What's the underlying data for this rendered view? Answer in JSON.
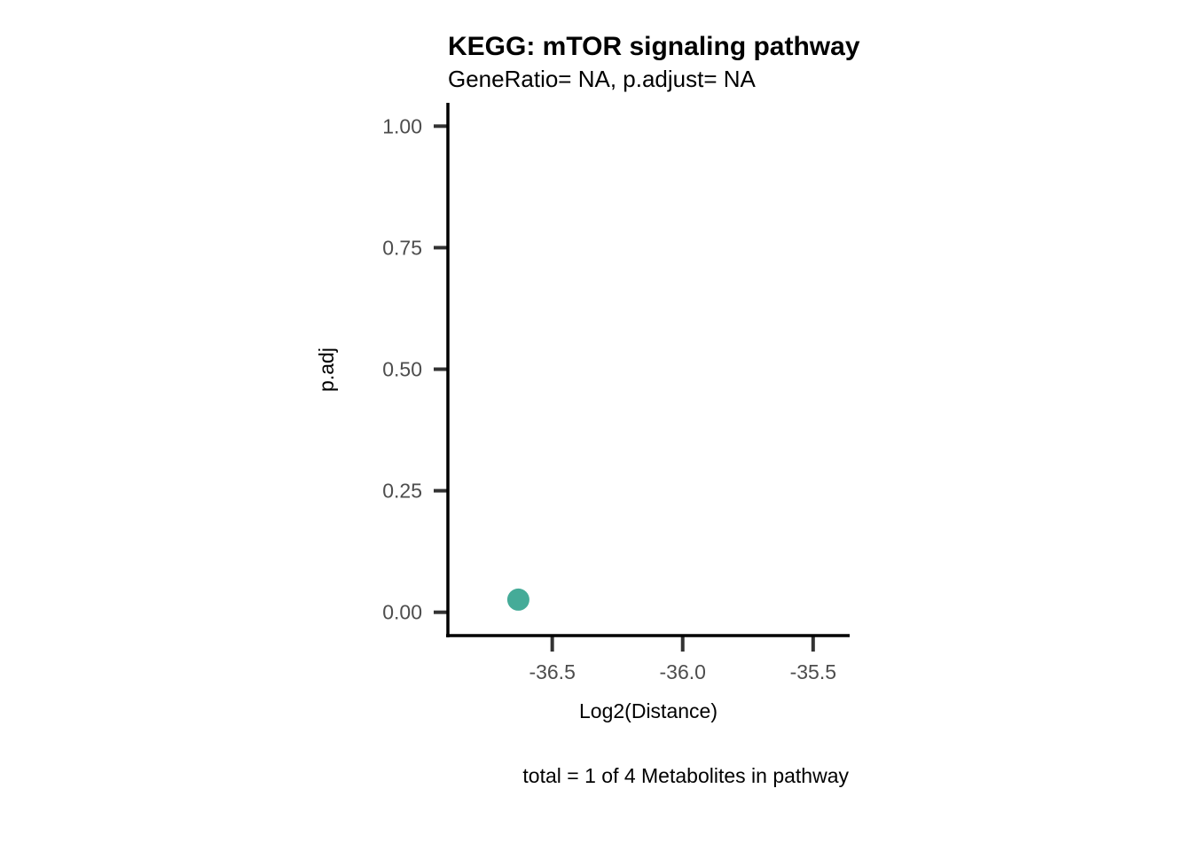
{
  "chart_data": {
    "type": "scatter",
    "title": "KEGG: mTOR signaling pathway",
    "subtitle": "GeneRatio= NA, p.adjust= NA",
    "xlabel": "Log2(Distance)",
    "ylabel": "p.adj",
    "caption": "total = 1 of 4 Metabolites in pathway",
    "xlim": [
      -36.9,
      -35.36
    ],
    "ylim": [
      -0.048,
      1.048
    ],
    "x_ticks": [
      {
        "value": -36.5,
        "label": "-36.5"
      },
      {
        "value": -36.0,
        "label": "-36.0"
      },
      {
        "value": -35.5,
        "label": "-35.5"
      }
    ],
    "y_ticks": [
      {
        "value": 0.0,
        "label": "0.00"
      },
      {
        "value": 0.25,
        "label": "0.25"
      },
      {
        "value": 0.5,
        "label": "0.50"
      },
      {
        "value": 0.75,
        "label": "0.75"
      },
      {
        "value": 1.0,
        "label": "1.00"
      }
    ],
    "points": [
      {
        "x": -36.63,
        "y": 0.026
      }
    ],
    "point_color": "#45AB98",
    "grid": false,
    "legend": "none"
  }
}
